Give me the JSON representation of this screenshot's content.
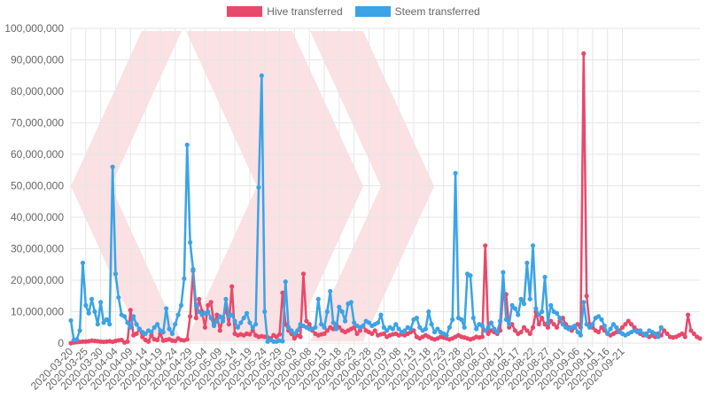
{
  "colors": {
    "hive": "#e8496a",
    "steem": "#3ba3e6",
    "grid": "#e6e6e6",
    "watermark": "#fbe1e3"
  },
  "chart_data": {
    "type": "line",
    "legend_position": "top-center",
    "grid": true,
    "ylim": [
      0,
      100000000
    ],
    "y_ticks": [
      "0",
      "10,000,000",
      "20,000,000",
      "30,000,000",
      "40,000,000",
      "50,000,000",
      "60,000,000",
      "70,000,000",
      "80,000,000",
      "90,000,000",
      "100,000,000"
    ],
    "x_tick_labels": [
      "2020-03-20",
      "2020-03-25",
      "2020-03-30",
      "2020-04-04",
      "2020-04-09",
      "2020-04-14",
      "2020-04-19",
      "2020-04-24",
      "2020-04-29",
      "2020-05-04",
      "2020-05-09",
      "2020-05-14",
      "2020-05-19",
      "2020-05-24",
      "2020-05-29",
      "2020-06-03",
      "2020-06-08",
      "2020-06-13",
      "2020-06-18",
      "2020-06-23",
      "2020-06-28",
      "2020-07-03",
      "2020-07-08",
      "2020-07-13",
      "2020-07-18",
      "2020-07-23",
      "2020-07-28",
      "2020-08-02",
      "2020-08-07",
      "2020-08-12",
      "2020-08-17",
      "2020-08-22",
      "2020-08-27",
      "2020-09-01",
      "2020-09-06",
      "2020-09-11",
      "2020-09-16",
      "2020-09-21"
    ],
    "x_start": "2020-03-20",
    "series": [
      {
        "name": "Hive transferred",
        "color": "#e8496a",
        "values": [
          0,
          200000,
          300000,
          400000,
          500000,
          500000,
          600000,
          800000,
          700000,
          600000,
          500000,
          400000,
          500000,
          600000,
          400000,
          700000,
          900000,
          1000000,
          200000,
          500000,
          10500000,
          2500000,
          3000000,
          4500000,
          2000000,
          1000000,
          500000,
          2500000,
          1200000,
          1000000,
          3000000,
          800000,
          1000000,
          1200000,
          800000,
          700000,
          1500000,
          1000000,
          900000,
          1200000,
          8500000,
          23000000,
          8000000,
          14000000,
          10000000,
          5000000,
          12000000,
          13000000,
          6000000,
          9000000,
          4000000,
          8000000,
          11000000,
          6000000,
          18000000,
          3000000,
          2500000,
          2800000,
          2500000,
          3000000,
          2800000,
          4000000,
          2500000,
          2000000,
          2200000,
          2000000,
          1800000,
          1500000,
          2500000,
          2000000,
          2800000,
          16000000,
          6000000,
          4000000,
          3000000,
          1500000,
          2500000,
          2000000,
          22000000,
          7000000,
          6000000,
          4000000,
          3000000,
          2500000,
          2800000,
          3000000,
          4000000,
          5000000,
          4500000,
          6000000,
          5000000,
          4000000,
          3500000,
          4000000,
          4500000,
          5000000,
          3000000,
          4000000,
          5500000,
          4000000,
          3500000,
          3000000,
          4000000,
          2500000,
          2800000,
          3000000,
          2000000,
          2500000,
          2800000,
          3000000,
          2500000,
          2800000,
          2500000,
          3000000,
          3500000,
          4000000,
          2000000,
          1500000,
          2000000,
          2500000,
          2000000,
          1500000,
          1200000,
          1500000,
          2000000,
          1800000,
          1500000,
          1200000,
          1500000,
          2000000,
          2500000,
          2000000,
          1800000,
          1500000,
          1200000,
          1500000,
          2000000,
          1800000,
          2000000,
          31000000,
          3000000,
          4000000,
          3500000,
          3000000,
          4000000,
          16000000,
          15500000,
          5000000,
          6000000,
          4000000,
          3000000,
          3500000,
          5000000,
          4000000,
          3000000,
          5000000,
          10000000,
          6000000,
          8000000,
          6000000,
          5000000,
          7000000,
          6000000,
          5000000,
          7000000,
          8000000,
          6000000,
          5000000,
          4000000,
          5000000,
          6000000,
          5000000,
          92000000,
          15000000,
          6000000,
          5000000,
          4000000,
          3500000,
          5000000,
          4000000,
          3000000,
          2500000,
          3000000,
          3500000,
          4000000,
          5000000,
          6000000,
          7000000,
          6000000,
          5000000,
          4000000,
          3000000,
          2500000,
          3000000,
          2000000,
          2500000,
          2000000,
          3000000,
          2500000,
          4000000,
          3000000,
          2000000,
          1800000,
          2000000,
          2500000,
          3000000,
          2000000,
          9000000,
          4000000,
          3000000,
          2000000,
          1500000
        ]
      },
      {
        "name": "Steem transferred",
        "color": "#3ba3e6",
        "values": [
          7200000,
          1000000,
          1200000,
          4000000,
          25500000,
          12000000,
          9500000,
          14000000,
          10000000,
          6000000,
          13000000,
          6500000,
          7500000,
          6000000,
          56000000,
          22000000,
          14500000,
          9000000,
          8500000,
          6500000,
          5000000,
          8500000,
          6000000,
          4500000,
          3500000,
          3000000,
          4000000,
          3500000,
          5000000,
          6000000,
          4000000,
          3500000,
          11000000,
          4500000,
          3000000,
          6000000,
          9000000,
          12000000,
          20500000,
          63000000,
          32000000,
          23500000,
          12000000,
          10000000,
          9000000,
          9500000,
          10000000,
          8000000,
          5500000,
          7000000,
          8500000,
          7000000,
          14000000,
          8500000,
          9000000,
          7000000,
          5000000,
          6500000,
          8000000,
          9500000,
          6500000,
          5000000,
          6000000,
          49500000,
          85000000,
          10000000,
          500000,
          1000000,
          500000,
          500000,
          800000,
          600000,
          19500000,
          5000000,
          4000000,
          3000000,
          4000000,
          6000000,
          5500000,
          5000000,
          4500000,
          4500000,
          5000000,
          14000000,
          6000000,
          5000000,
          10000000,
          16500000,
          6500000,
          4500000,
          11500000,
          10000000,
          7000000,
          12500000,
          13000000,
          6500000,
          5500000,
          5000000,
          5500000,
          7000000,
          6500000,
          5500000,
          6000000,
          6500000,
          9000000,
          5000000,
          4000000,
          5000000,
          4500000,
          6000000,
          4500000,
          3500000,
          4000000,
          5000000,
          4500000,
          7500000,
          8000000,
          5000000,
          4000000,
          4500000,
          10000000,
          6000000,
          3500000,
          4500000,
          3500000,
          3000000,
          2500000,
          5000000,
          7500000,
          54000000,
          8000000,
          7500000,
          5000000,
          22000000,
          21500000,
          8000000,
          4500000,
          6000000,
          5500000,
          4000000,
          5000000,
          6500000,
          4500000,
          3500000,
          7000000,
          22500000,
          7500000,
          6000000,
          12000000,
          11000000,
          9000000,
          14000000,
          12500000,
          25500000,
          14000000,
          31000000,
          11000000,
          9000000,
          10000000,
          21000000,
          6500000,
          12000000,
          10000000,
          9500000,
          8000000,
          6000000,
          5000000,
          4500000,
          5000000,
          5500000,
          3500000,
          2500000,
          13000000,
          6000000,
          5000000,
          6000000,
          8000000,
          8500000,
          7500000,
          5500000,
          3000000,
          4500000,
          6000000,
          5000000,
          3500000,
          3000000,
          2500000,
          3000000,
          3500000,
          4000000,
          3500000,
          4000000,
          3000000,
          2500000,
          4000000,
          3500000,
          3000000,
          2000000,
          5000000
        ]
      }
    ]
  }
}
